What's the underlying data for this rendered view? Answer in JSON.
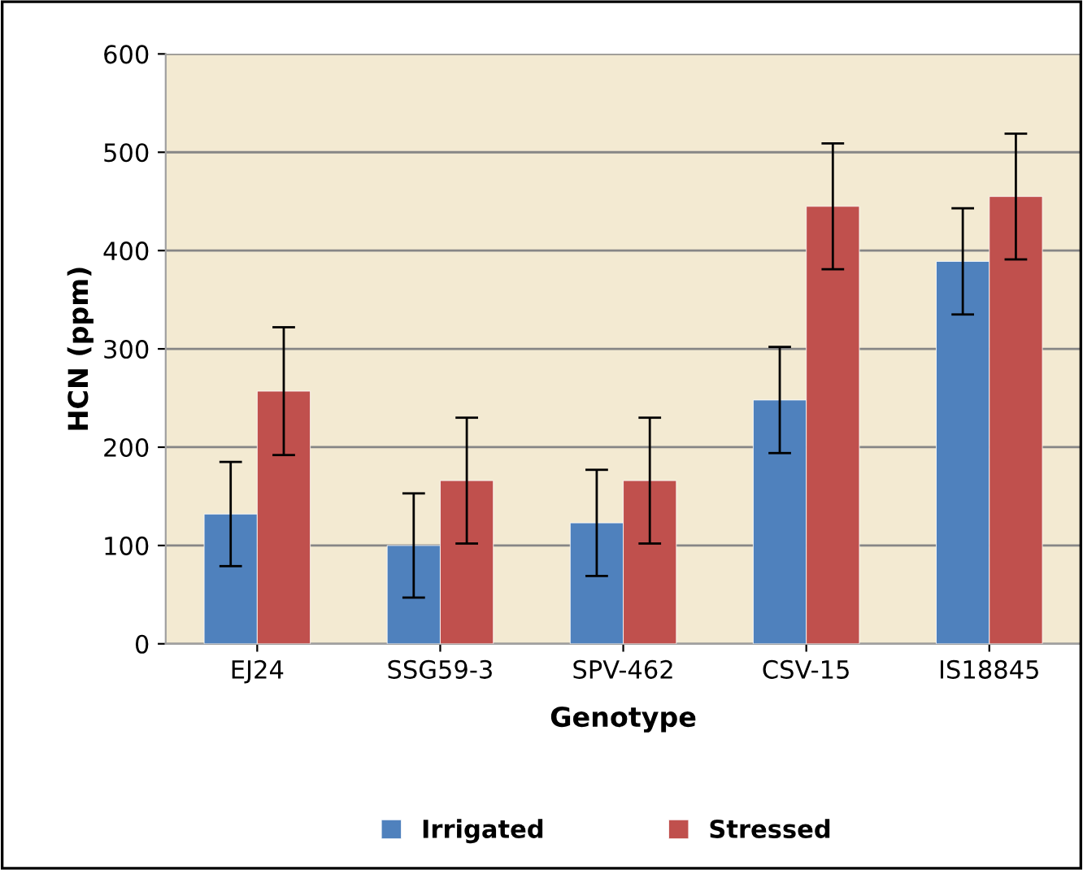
{
  "chart_data": {
    "type": "bar",
    "xlabel": "Genotype",
    "ylabel": "HCN (ppm)",
    "categories": [
      "EJ24",
      "SSG59-3",
      "SPV-462",
      "CSV-15",
      "IS18845"
    ],
    "series": [
      {
        "name": "Irrigated",
        "color": "#4f81bd",
        "values": [
          132,
          100,
          123,
          248,
          389
        ],
        "errors": [
          53,
          53,
          54,
          54,
          54
        ]
      },
      {
        "name": "Stressed",
        "color": "#c0504d",
        "values": [
          257,
          166,
          166,
          445,
          455
        ],
        "errors": [
          65,
          64,
          64,
          64,
          64
        ]
      }
    ],
    "ylim": [
      0,
      600
    ],
    "yticks": [
      0,
      100,
      200,
      300,
      400,
      500,
      600
    ],
    "grid": "y",
    "legend": "bottom"
  }
}
